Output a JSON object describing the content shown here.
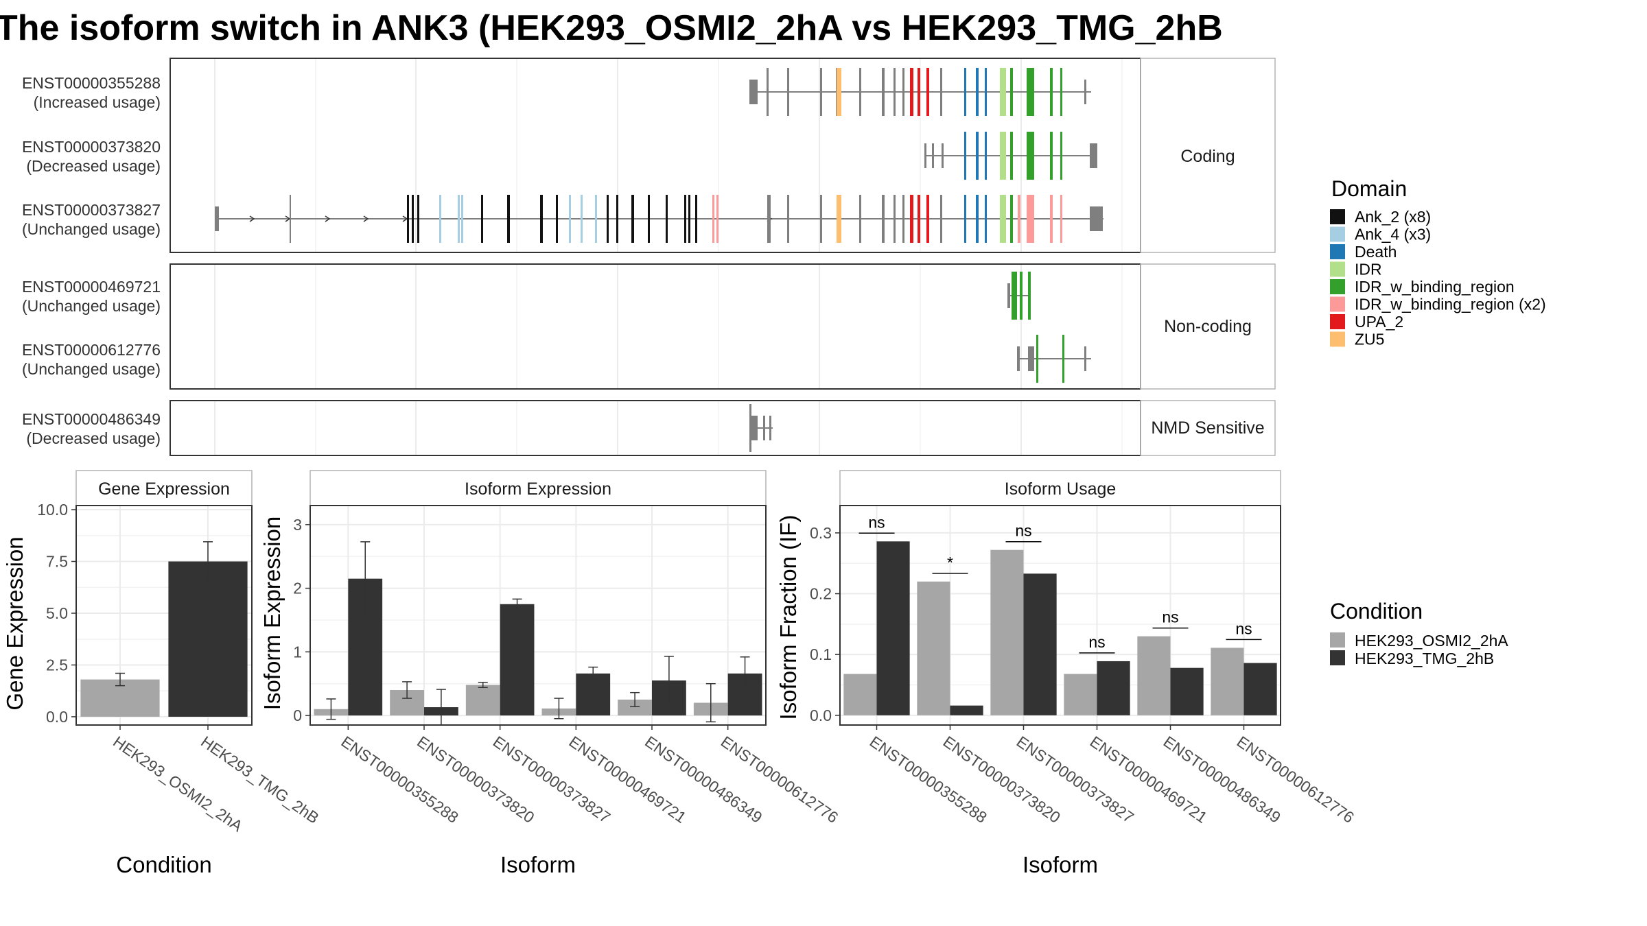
{
  "title": "The isoform switch in ANK3 (HEK293_OSMI2_2hA vs HEK293_TMG_2hB",
  "colors": {
    "condition_a": "#a6a6a6",
    "condition_b": "#333333",
    "exon": "#7f7f7f",
    "intron": "#7f7f7f"
  },
  "chart_data": [
    {
      "type": "gene-structure",
      "panels": [
        {
          "name": "Coding",
          "transcripts": [
            {
              "id": "ENST00000355288",
              "usage": "(Increased usage)"
            },
            {
              "id": "ENST00000373820",
              "usage": "(Decreased usage)"
            },
            {
              "id": "ENST00000373827",
              "usage": "(Unchanged usage)"
            }
          ]
        },
        {
          "name": "Non-coding",
          "transcripts": [
            {
              "id": "ENST00000469721",
              "usage": "(Unchanged usage)"
            },
            {
              "id": "ENST00000612776",
              "usage": "(Unchanged usage)"
            }
          ]
        },
        {
          "name": "NMD Sensitive",
          "transcripts": [
            {
              "id": "ENST00000486349",
              "usage": "(Decreased usage)"
            }
          ]
        }
      ],
      "legend_title": "Domain",
      "domains": [
        {
          "name": "Ank_2 (x8)",
          "color": "#111111"
        },
        {
          "name": "Ank_4 (x3)",
          "color": "#a6cee3"
        },
        {
          "name": "Death",
          "color": "#1f78b4"
        },
        {
          "name": "IDR",
          "color": "#b2df8a"
        },
        {
          "name": "IDR_w_binding_region",
          "color": "#33a02c"
        },
        {
          "name": "IDR_w_binding_region (x2)",
          "color": "#fb9a99"
        },
        {
          "name": "UPA_2",
          "color": "#e31a1c"
        },
        {
          "name": "ZU5",
          "color": "#fdbf6f"
        }
      ]
    },
    {
      "type": "bar",
      "strip": "Gene Expression",
      "xlabel": "Condition",
      "ylabel": "Gene Expression",
      "categories": [
        "HEK293_OSMI2_2hA",
        "HEK293_TMG_2hB"
      ],
      "values": [
        1.8,
        7.5
      ],
      "errors": [
        0.3,
        0.95
      ],
      "ylim": [
        -0.4,
        10.2
      ],
      "yticks": [
        "0.0",
        "2.5",
        "5.0",
        "7.5",
        "10.0"
      ],
      "ytick_values": [
        0,
        2.5,
        5,
        7.5,
        10
      ]
    },
    {
      "type": "bar",
      "strip": "Isoform Expression",
      "xlabel": "Isoform",
      "ylabel": "Isoform Expression",
      "categories": [
        "ENST00000355288",
        "ENST00000373820",
        "ENST00000373827",
        "ENST00000469721",
        "ENST00000486349",
        "ENST00000612776"
      ],
      "series": [
        {
          "name": "HEK293_OSMI2_2hA",
          "values": [
            0.1,
            0.4,
            0.48,
            0.11,
            0.25,
            0.2
          ],
          "errors": [
            0.16,
            0.13,
            0.04,
            0.16,
            0.11,
            0.3
          ]
        },
        {
          "name": "HEK293_TMG_2hB",
          "values": [
            2.15,
            0.13,
            1.75,
            0.66,
            0.55,
            0.66
          ],
          "errors": [
            0.58,
            0.28,
            0.08,
            0.1,
            0.38,
            0.26
          ]
        }
      ],
      "ylim": [
        -0.15,
        3.3
      ],
      "yticks": [
        "0",
        "1",
        "2",
        "3"
      ],
      "ytick_values": [
        0,
        1,
        2,
        3
      ]
    },
    {
      "type": "bar",
      "strip": "Isoform Usage",
      "xlabel": "Isoform",
      "ylabel": "Isoform Fraction (IF)",
      "categories": [
        "ENST00000355288",
        "ENST00000373820",
        "ENST00000373827",
        "ENST00000469721",
        "ENST00000486349",
        "ENST00000612776"
      ],
      "series": [
        {
          "name": "HEK293_OSMI2_2hA",
          "values": [
            0.068,
            0.22,
            0.272,
            0.068,
            0.13,
            0.111
          ]
        },
        {
          "name": "HEK293_TMG_2hB",
          "values": [
            0.286,
            0.016,
            0.233,
            0.089,
            0.078,
            0.086
          ]
        }
      ],
      "significance": [
        "ns",
        "*",
        "ns",
        "ns",
        "ns",
        "ns"
      ],
      "ylim": [
        -0.016,
        0.345
      ],
      "yticks": [
        "0.0",
        "0.1",
        "0.2",
        "0.3"
      ],
      "ytick_values": [
        0,
        0.1,
        0.2,
        0.3
      ]
    }
  ],
  "condition_legend": {
    "title": "Condition",
    "items": [
      "HEK293_OSMI2_2hA",
      "HEK293_TMG_2hB"
    ]
  }
}
